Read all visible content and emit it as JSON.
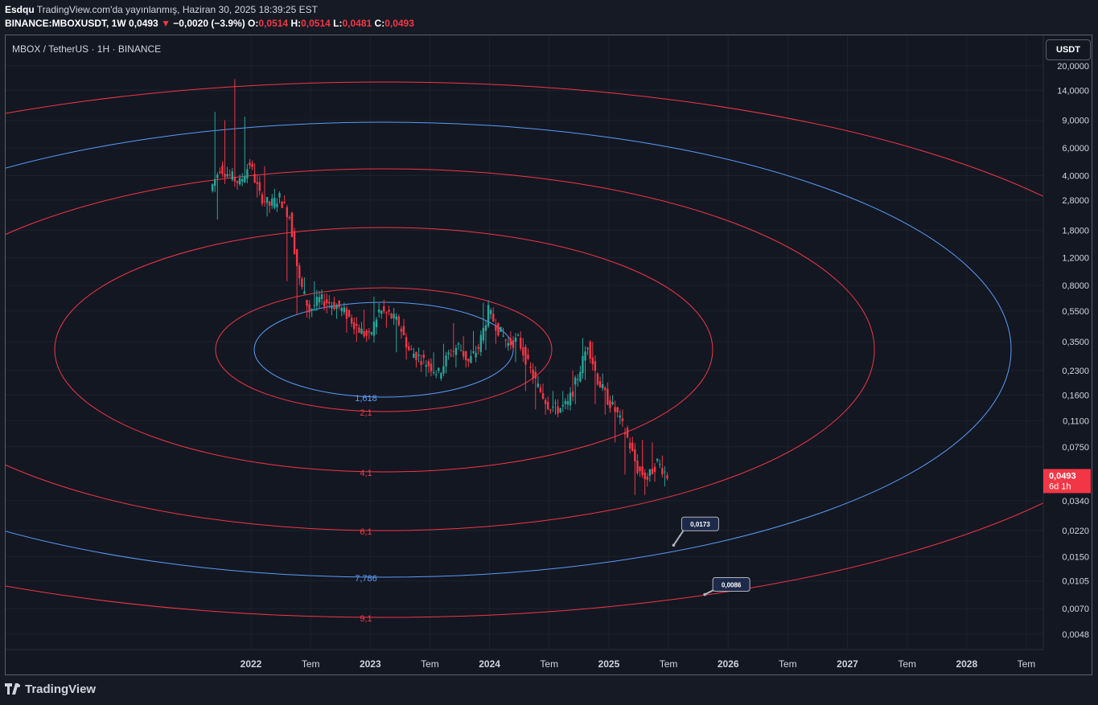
{
  "header": {
    "author": "Esdqu",
    "published": "TradingView.com'da yayınlanmış, Haziran 30, 2025 18:39:25 EST",
    "symbol": "BINANCE:MBOXUSDT, 1W",
    "last": "0,0493",
    "change_arrow": "▼",
    "change": "−0,0020 (−3.9%)",
    "o_label": "O:",
    "o_val": "0,0514",
    "h_label": "H:",
    "h_val": "0,0514",
    "l_label": "L:",
    "l_val": "0,0481",
    "c_label": "C:",
    "c_val": "0,0493"
  },
  "pane": {
    "title": "MBOX / TetherUS · 1H · BINANCE",
    "currency_button": "USDT"
  },
  "footer": {
    "brand": "TradingView"
  },
  "colors": {
    "background": "#131722",
    "up": "#26a69a",
    "down": "#f23645",
    "ellipse_red": "#f23645",
    "ellipse_blue": "#5b9cf6",
    "ellipse_inner_blue": "#2962ff"
  },
  "chart_data": {
    "type": "line",
    "scale": "log",
    "title": "MBOX / TetherUS · 1H · BINANCE",
    "y_ticks": [
      "20,0000",
      "14,0000",
      "9,0000",
      "6,0000",
      "4,0000",
      "2,8000",
      "1,8000",
      "1,2000",
      "0,8000",
      "0,5500",
      "0,3500",
      "0,2300",
      "0,1600",
      "0,1100",
      "0,0750",
      "0,0340",
      "0,0220",
      "0,0150",
      "0,0105",
      "0,0070",
      "0,0048"
    ],
    "x_ticks": [
      "2022",
      "Tem",
      "2023",
      "Tem",
      "2024",
      "Tem",
      "2025",
      "Tem",
      "2026",
      "Tem",
      "2027",
      "Tem",
      "2028",
      "Tem"
    ],
    "last_price": "0,0493",
    "last_price_countdown": "6d 1h",
    "price_series": {
      "name": "MBOXUSDT",
      "x": [
        "2021-09",
        "2021-10",
        "2021-11",
        "2021-12",
        "2022-01",
        "2022-02",
        "2022-03",
        "2022-04",
        "2022-05",
        "2022-06",
        "2022-07",
        "2022-08",
        "2022-09",
        "2022-10",
        "2022-11",
        "2022-12",
        "2023-01",
        "2023-02",
        "2023-03",
        "2023-04",
        "2023-05",
        "2023-06",
        "2023-07",
        "2023-08",
        "2023-09",
        "2023-10",
        "2023-11",
        "2023-12",
        "2024-01",
        "2024-02",
        "2024-03",
        "2024-04",
        "2024-05",
        "2024-06",
        "2024-07",
        "2024-08",
        "2024-09",
        "2024-10",
        "2024-11",
        "2024-12",
        "2025-01",
        "2025-02",
        "2025-03",
        "2025-04",
        "2025-05",
        "2025-06"
      ],
      "close": [
        4.5,
        4.0,
        3.6,
        4.8,
        3.0,
        2.6,
        2.9,
        2.2,
        0.85,
        0.55,
        0.65,
        0.62,
        0.58,
        0.5,
        0.42,
        0.37,
        0.55,
        0.52,
        0.46,
        0.31,
        0.28,
        0.25,
        0.22,
        0.29,
        0.33,
        0.26,
        0.32,
        0.55,
        0.42,
        0.34,
        0.36,
        0.25,
        0.18,
        0.14,
        0.13,
        0.14,
        0.21,
        0.34,
        0.2,
        0.15,
        0.12,
        0.085,
        0.054,
        0.047,
        0.06,
        0.0493
      ]
    },
    "fib_circles": [
      {
        "label": "1,618",
        "color": "#5b9cf6"
      },
      {
        "label": "2,1",
        "color": "#f23645"
      },
      {
        "label": "4,1",
        "color": "#f23645"
      },
      {
        "label": "6,1",
        "color": "#f23645"
      },
      {
        "label": "7,786",
        "color": "#5b9cf6"
      },
      {
        "label": "9,1",
        "color": "#f23645"
      }
    ],
    "price_notes": [
      {
        "label": "0,0173",
        "x": "2025-08",
        "y": 0.0173
      },
      {
        "label": "0,0086",
        "x": "2025-10",
        "y": 0.0086
      }
    ]
  }
}
